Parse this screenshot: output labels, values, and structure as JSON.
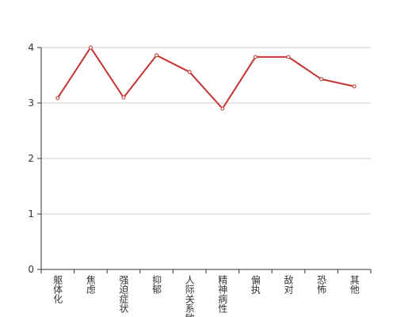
{
  "chart_data": {
    "type": "line",
    "categories": [
      "躯体化",
      "焦虑",
      "强迫症状",
      "抑郁",
      "人际关系敏感",
      "精神病性",
      "偏执",
      "敌对",
      "恐怖",
      "其他"
    ],
    "values": [
      3.09,
      4.0,
      3.1,
      3.86,
      3.56,
      2.9,
      3.83,
      3.83,
      3.43,
      3.3
    ],
    "color": "#c23531",
    "ylim": [
      0,
      4
    ],
    "yticks": [
      0,
      1,
      2,
      3,
      4
    ],
    "grid": true
  }
}
